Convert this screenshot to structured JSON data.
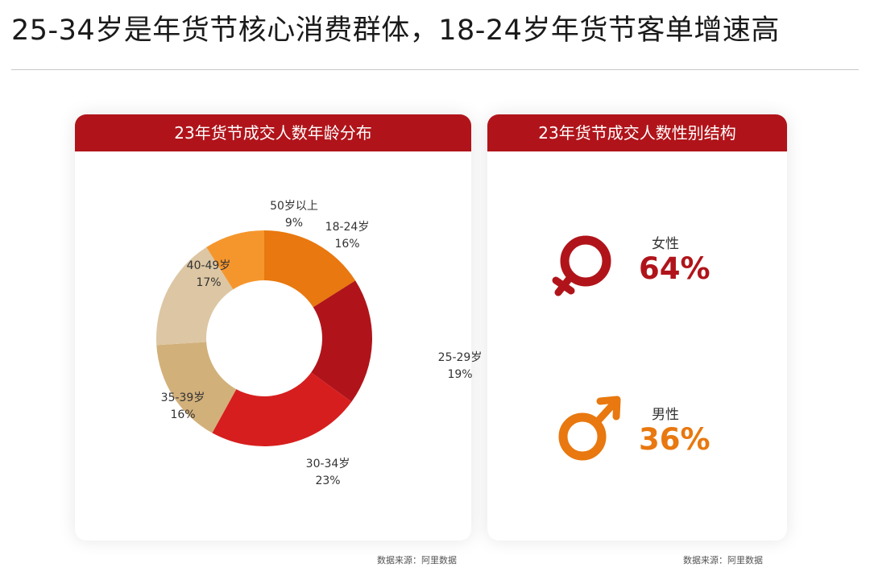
{
  "title": "25-34岁是年货节核心消费群体，18-24岁年货节客单增速高",
  "source_label": "数据来源：阿里数据",
  "colors": {
    "header": "#b0141a",
    "female": "#b0141a",
    "male": "#e8780f"
  },
  "age_panel": {
    "header": "23年货节成交人数年龄分布"
  },
  "gender_panel": {
    "header": "23年货节成交人数性别结构",
    "female": {
      "label": "女性",
      "value": "64%",
      "icon": "female-symbol-icon"
    },
    "male": {
      "label": "男性",
      "value": "36%",
      "icon": "male-symbol-icon"
    }
  },
  "chart_data": [
    {
      "type": "pie",
      "title": "23年货节成交人数年龄分布",
      "donut": true,
      "slices": [
        {
          "label": "18-24岁",
          "value": 16,
          "value_label": "16%",
          "color": "#e8780f"
        },
        {
          "label": "25-29岁",
          "value": 19,
          "value_label": "19%",
          "color": "#b0141a"
        },
        {
          "label": "30-34岁",
          "value": 23,
          "value_label": "23%",
          "color": "#d71e1e"
        },
        {
          "label": "35-39岁",
          "value": 16,
          "value_label": "16%",
          "color": "#d2b07a"
        },
        {
          "label": "40-49岁",
          "value": 17,
          "value_label": "17%",
          "color": "#ddc6a3"
        },
        {
          "label": "50岁以上",
          "value": 9,
          "value_label": "9%",
          "color": "#f5962d"
        }
      ]
    },
    {
      "type": "bar",
      "title": "23年货节成交人数性别结构",
      "categories": [
        "女性",
        "男性"
      ],
      "values": [
        64,
        36
      ]
    }
  ]
}
